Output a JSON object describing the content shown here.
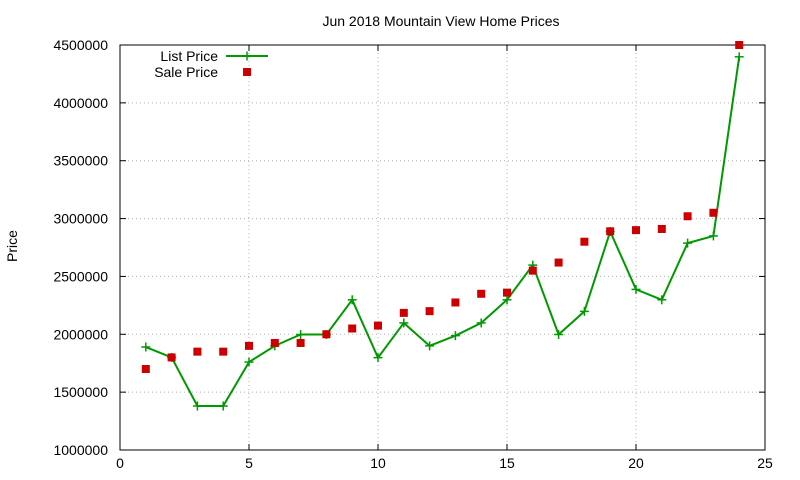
{
  "chart_data": {
    "type": "line",
    "title": "Jun 2018 Mountain View Home Prices",
    "xlabel": "",
    "ylabel": "Price",
    "xlim": [
      0,
      25
    ],
    "ylim": [
      1000000,
      4500000
    ],
    "xticks": [
      0,
      5,
      10,
      15,
      20,
      25
    ],
    "yticks": [
      1000000,
      1500000,
      2000000,
      2500000,
      3000000,
      3500000,
      4000000,
      4500000
    ],
    "grid": true,
    "legend_position": "top-left",
    "series": [
      {
        "name": "List Price",
        "style": "line-with-plus-markers",
        "color": "#009900",
        "x": [
          1,
          2,
          3,
          4,
          5,
          6,
          7,
          8,
          9,
          10,
          11,
          12,
          13,
          14,
          15,
          16,
          17,
          18,
          19,
          20,
          21,
          22,
          23,
          24
        ],
        "y": [
          1890000,
          1800000,
          1380000,
          1380000,
          1760000,
          1900000,
          1998000,
          1998000,
          2298000,
          1798000,
          2098000,
          1900000,
          1988000,
          2098000,
          2298000,
          2598000,
          1998000,
          2198000,
          2888000,
          2388000,
          2298000,
          2788000,
          2850000,
          4398000
        ]
      },
      {
        "name": "Sale Price",
        "style": "square-markers",
        "color": "#cc0000",
        "x": [
          1,
          2,
          3,
          4,
          5,
          6,
          7,
          8,
          9,
          10,
          11,
          12,
          13,
          14,
          15,
          16,
          17,
          18,
          19,
          20,
          21,
          22,
          23,
          24
        ],
        "y": [
          1700000,
          1800000,
          1850000,
          1850000,
          1900000,
          1925000,
          1925000,
          2000000,
          2050000,
          2075000,
          2185000,
          2200000,
          2275000,
          2350000,
          2360000,
          2550000,
          2620000,
          2800000,
          2890000,
          2900000,
          2910000,
          3020000,
          3050000,
          4500000
        ]
      }
    ]
  }
}
